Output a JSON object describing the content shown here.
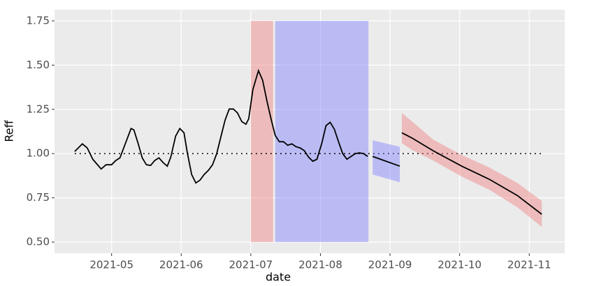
{
  "chart_data": {
    "type": "line",
    "x_label": "date",
    "y_label": "Reff",
    "xlim": [
      4.18,
      11.51
    ],
    "ylim": [
      0.437,
      1.813
    ],
    "xticks": [
      {
        "value": 5,
        "label": "2021-05"
      },
      {
        "value": 6,
        "label": "2021-06"
      },
      {
        "value": 7,
        "label": "2021-07"
      },
      {
        "value": 8,
        "label": "2021-08"
      },
      {
        "value": 9,
        "label": "2021-09"
      },
      {
        "value": 10,
        "label": "2021-10"
      },
      {
        "value": 11,
        "label": "2021-11"
      }
    ],
    "yticks": [
      {
        "value": 0.5,
        "label": "0.50"
      },
      {
        "value": 0.75,
        "label": "0.75"
      },
      {
        "value": 1,
        "label": "1.00"
      },
      {
        "value": 1.25,
        "label": "1.25"
      },
      {
        "value": 1.5,
        "label": "1.50"
      },
      {
        "value": 1.75,
        "label": "1.75"
      }
    ],
    "grid": true,
    "shaded_regions": [
      {
        "xmin": 7.0,
        "xmax": 7.32,
        "ymin": 0.5,
        "ymax": 1.75,
        "color": "#f08080"
      },
      {
        "xmin": 7.35,
        "xmax": 8.69,
        "ymin": 0.5,
        "ymax": 1.75,
        "color": "#8080ff"
      }
    ],
    "reference_line": {
      "y": 1,
      "xmin": 4.47,
      "xmax": 11.18,
      "color": "#000000",
      "style": "dotted"
    },
    "series": [
      {
        "color": "#000000",
        "x": [
          4.47,
          4.58,
          4.65,
          4.73,
          4.85,
          4.92,
          5.0,
          5.06,
          5.12,
          5.2,
          5.28,
          5.32,
          5.38,
          5.44,
          5.5,
          5.56,
          5.62,
          5.68,
          5.74,
          5.8,
          5.85,
          5.92,
          5.98,
          6.04,
          6.09,
          6.15,
          6.21,
          6.27,
          6.33,
          6.39,
          6.45,
          6.51,
          6.57,
          6.63,
          6.69,
          6.75,
          6.81,
          6.87,
          6.93,
          6.97,
          7.03,
          7.11,
          7.17,
          7.23,
          7.29,
          7.35,
          7.41,
          7.47,
          7.53,
          7.59,
          7.65,
          7.71,
          7.77,
          7.83,
          7.89,
          7.95,
          8.02,
          8.08,
          8.14,
          8.2,
          8.26,
          8.32,
          8.38,
          8.44,
          8.5,
          8.56,
          8.62,
          8.68
        ],
        "values": [
          1.012,
          1.055,
          1.032,
          0.968,
          0.913,
          0.937,
          0.937,
          0.961,
          0.976,
          1.059,
          1.142,
          1.134,
          1.059,
          0.976,
          0.937,
          0.933,
          0.961,
          0.976,
          0.949,
          0.929,
          0.98,
          1.099,
          1.142,
          1.118,
          1.0,
          0.882,
          0.834,
          0.85,
          0.882,
          0.905,
          0.937,
          1.0,
          1.095,
          1.189,
          1.252,
          1.252,
          1.229,
          1.181,
          1.166,
          1.197,
          1.363,
          1.469,
          1.414,
          1.3,
          1.197,
          1.103,
          1.067,
          1.067,
          1.047,
          1.055,
          1.039,
          1.032,
          1.016,
          0.98,
          0.957,
          0.968,
          1.059,
          1.158,
          1.177,
          1.138,
          1.067,
          1.0,
          0.968,
          0.984,
          1.0,
          1.004,
          1.0,
          0.984
        ]
      },
      {
        "color": "#000000",
        "ribbon_color": "#8080ff",
        "x": [
          8.75,
          9.14
        ],
        "values": [
          0.984,
          0.929
        ],
        "upper": [
          1.075,
          1.039
        ],
        "lower": [
          0.882,
          0.838
        ]
      },
      {
        "color": "#000000",
        "ribbon_color": "#f08080",
        "x": [
          9.17,
          9.32,
          9.62,
          10.03,
          10.43,
          10.83,
          11.18
        ],
        "values": [
          1.118,
          1.087,
          1.016,
          0.929,
          0.854,
          0.763,
          0.657
        ],
        "upper": [
          1.229,
          1.18,
          1.079,
          0.992,
          0.921,
          0.834,
          0.732
        ],
        "lower": [
          1.059,
          1.02,
          0.961,
          0.87,
          0.795,
          0.696,
          0.586
        ]
      }
    ]
  }
}
